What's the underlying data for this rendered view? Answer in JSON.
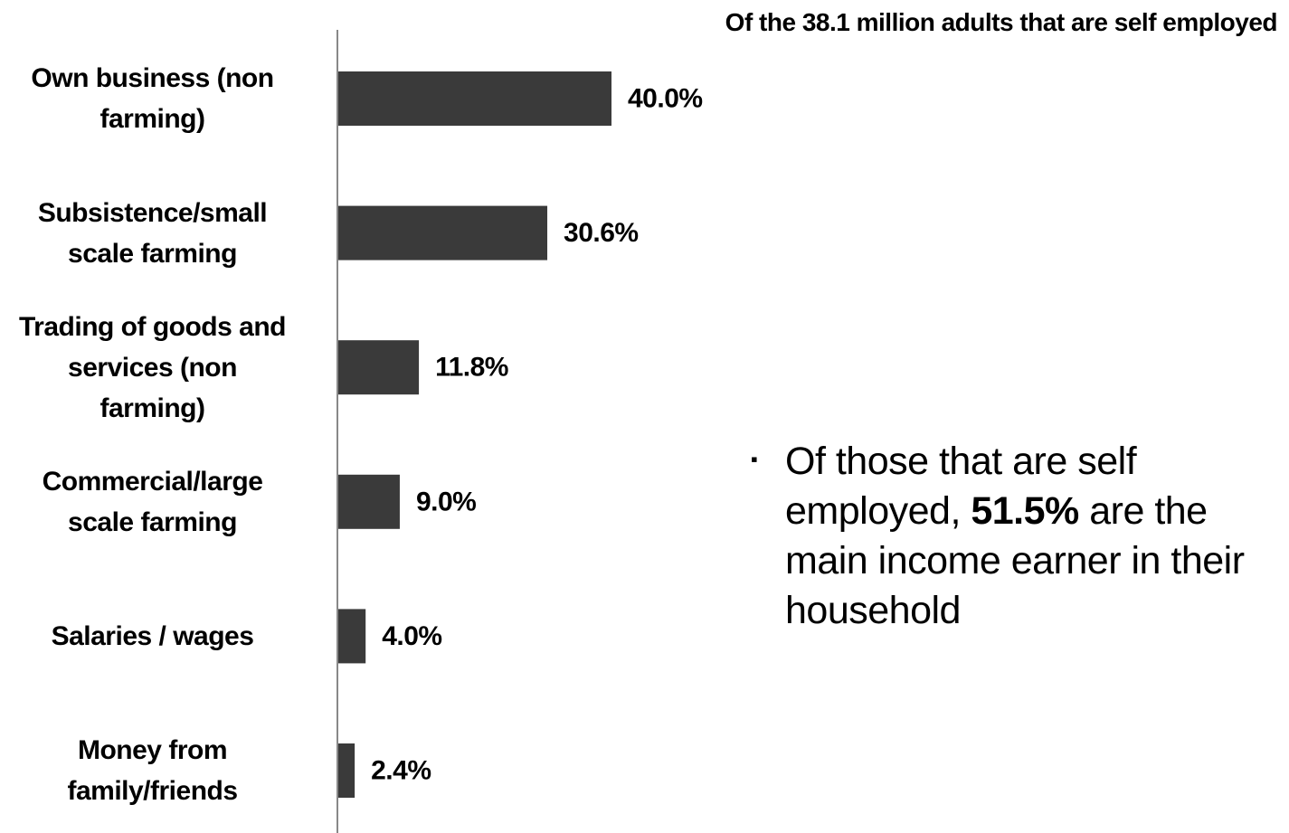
{
  "chart_data": {
    "type": "bar",
    "orientation": "horizontal",
    "subtitle": "Of the 38.1 million adults that are self employed",
    "categories": [
      [
        "Own business (non",
        "farming)"
      ],
      [
        "Subsistence/small",
        "scale farming"
      ],
      [
        "Trading of goods and",
        "services (non",
        "farming)"
      ],
      [
        "Commercial/large",
        "scale farming"
      ],
      [
        "Salaries / wages"
      ],
      [
        "Money from",
        "family/friends"
      ]
    ],
    "values": [
      40.0,
      30.6,
      11.8,
      9.0,
      4.0,
      2.4
    ],
    "value_labels": [
      "40.0%",
      "30.6%",
      "11.8%",
      "9.0%",
      "4.0%",
      "2.4%"
    ],
    "xlim": [
      0,
      100
    ],
    "bar_color": "#3a3a3a",
    "axis_color": "#888888",
    "grid": false,
    "legend": "none"
  },
  "note": {
    "bullet": "▪",
    "text_before": "Of those that are self employed, ",
    "text_bold": "51.5%",
    "text_after": " are the main income earner in their household"
  }
}
